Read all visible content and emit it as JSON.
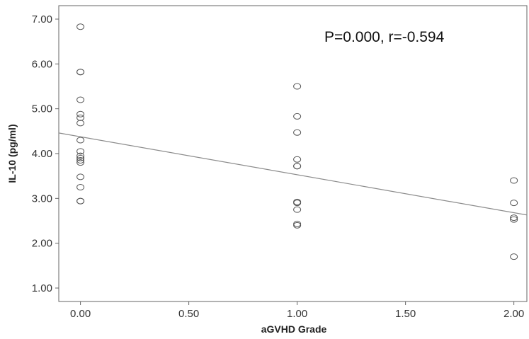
{
  "chart_data": {
    "type": "scatter",
    "title": "",
    "xlabel": "aGVHD Grade",
    "ylabel": "IL-10 (pg/ml)",
    "annotation": "P=0.000, r=-0.594",
    "xlim": [
      -0.1,
      2.06
    ],
    "ylim": [
      0.7,
      7.3
    ],
    "x_ticks": [
      0,
      0.5,
      1,
      1.5,
      2
    ],
    "x_tick_labels": [
      "0.00",
      "0.50",
      "1.00",
      "1.50",
      "2.00"
    ],
    "y_ticks": [
      1,
      2,
      3,
      4,
      5,
      6,
      7
    ],
    "y_tick_labels": [
      "1.00",
      "2.00",
      "3.00",
      "4.00",
      "5.00",
      "6.00",
      "7.00"
    ],
    "grid": false,
    "series": [
      {
        "points": [
          [
            0,
            6.83
          ],
          [
            0,
            5.82
          ],
          [
            0,
            5.82
          ],
          [
            0,
            5.2
          ],
          [
            0,
            4.88
          ],
          [
            0,
            4.8
          ],
          [
            0,
            4.68
          ],
          [
            0,
            4.3
          ],
          [
            0,
            4.05
          ],
          [
            0,
            3.95
          ],
          [
            0,
            3.9
          ],
          [
            0,
            3.85
          ],
          [
            0,
            3.8
          ],
          [
            0,
            3.48
          ],
          [
            0,
            3.25
          ],
          [
            0,
            2.94
          ],
          [
            0,
            2.94
          ],
          [
            1,
            5.5
          ],
          [
            1,
            4.83
          ],
          [
            1,
            4.47
          ],
          [
            1,
            3.87
          ],
          [
            1,
            3.72
          ],
          [
            1,
            3.72
          ],
          [
            1,
            2.92
          ],
          [
            1,
            2.9
          ],
          [
            1,
            2.75
          ],
          [
            1,
            2.43
          ],
          [
            1,
            2.4
          ],
          [
            2,
            3.4
          ],
          [
            2,
            2.9
          ],
          [
            2,
            2.57
          ],
          [
            2,
            2.53
          ],
          [
            2,
            1.7
          ]
        ]
      }
    ],
    "fit_line": {
      "x": [
        -0.1,
        2.06
      ],
      "y": [
        4.46,
        2.63
      ]
    },
    "colors": {
      "marker": "#555555",
      "line": "#8c8c8c",
      "axis": "#666666",
      "text": "#333333"
    }
  }
}
